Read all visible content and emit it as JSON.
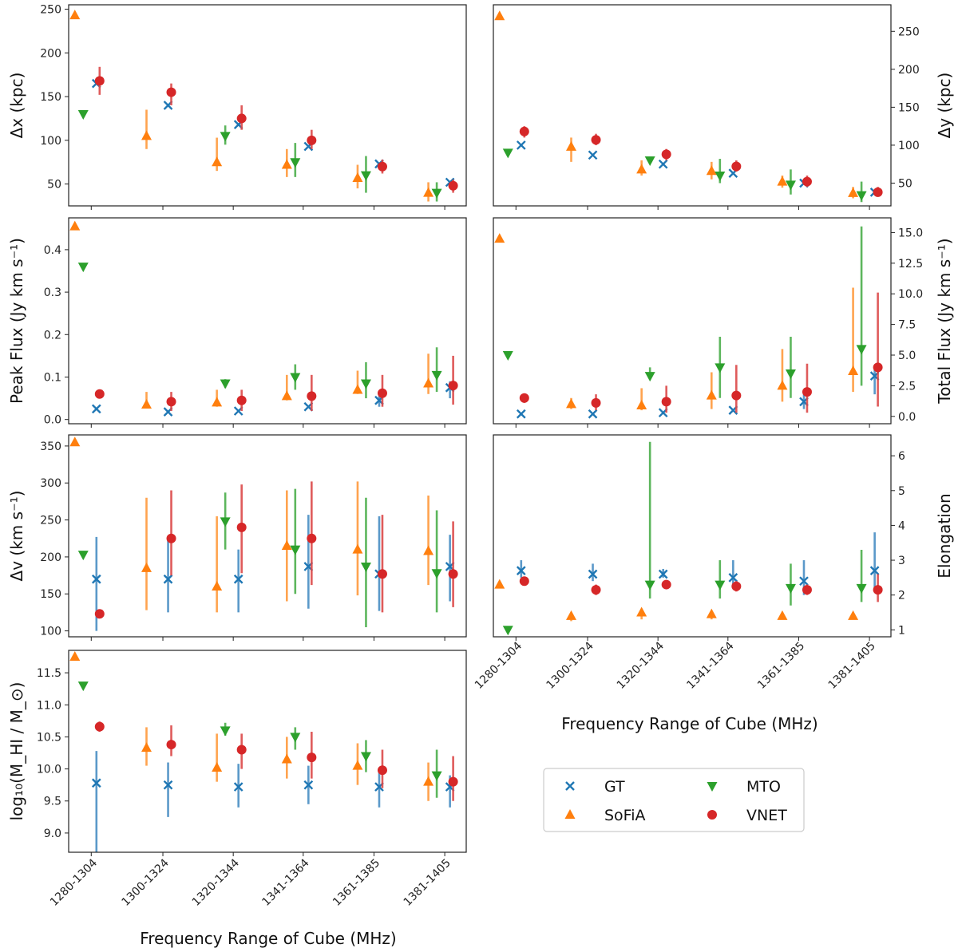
{
  "chart_data": {
    "type": "scatter",
    "categories": [
      "1280-1304",
      "1300-1324",
      "1320-1344",
      "1341-1364",
      "1361-1385",
      "1381-1405"
    ],
    "xlabel": "Frequency Range of Cube (MHz)",
    "legend": [
      {
        "key": "GT",
        "label": "GT",
        "color": "#1f77b4",
        "marker": "x"
      },
      {
        "key": "MTO",
        "label": "MTO",
        "color": "#2ca02c",
        "marker": "triangle-down"
      },
      {
        "key": "SoFiA",
        "label": "SoFiA",
        "color": "#ff7f0e",
        "marker": "triangle-up"
      },
      {
        "key": "VNET",
        "label": "VNET",
        "color": "#d62728",
        "marker": "circle"
      }
    ],
    "panels": [
      {
        "id": "dx",
        "ylabel": "Δx (kpc)",
        "ylim": [
          25,
          255
        ],
        "yticks": [
          50,
          100,
          150,
          200,
          250
        ],
        "yaxis": "left",
        "series": {
          "SoFiA": {
            "values": [
              243,
              105,
              75,
              72,
              57,
              40
            ],
            "low": [
              null,
              90,
              65,
              58,
              45,
              30
            ],
            "high": [
              null,
              135,
              103,
              90,
              72,
              52
            ]
          },
          "MTO": {
            "values": [
              130,
              null,
              105,
              75,
              60,
              40
            ],
            "low": [
              null,
              null,
              95,
              58,
              40,
              30
            ],
            "high": [
              null,
              null,
              117,
              97,
              82,
              52
            ]
          },
          "GT": {
            "values": [
              165,
              140,
              118,
              93,
              73,
              52
            ],
            "low": [
              null,
              null,
              null,
              null,
              null,
              null
            ],
            "high": [
              null,
              null,
              null,
              null,
              null,
              null
            ]
          },
          "VNET": {
            "values": [
              168,
              155,
              125,
              100,
              70,
              48
            ],
            "low": [
              152,
              140,
              112,
              90,
              62,
              40
            ],
            "high": [
              184,
              165,
              140,
              112,
              78,
              55
            ]
          }
        }
      },
      {
        "id": "dy",
        "ylabel": "Δy (kpc)",
        "ylim": [
          20,
          285
        ],
        "yticks": [
          50,
          100,
          150,
          200,
          250
        ],
        "yaxis": "right",
        "series": {
          "SoFiA": {
            "values": [
              270,
              98,
              68,
              66,
              52,
              37
            ],
            "low": [
              null,
              78,
              60,
              55,
              44,
              30
            ],
            "high": [
              null,
              110,
              80,
              78,
              60,
              45
            ]
          },
          "MTO": {
            "values": [
              90,
              null,
              80,
              60,
              48,
              34
            ],
            "low": [
              null,
              null,
              null,
              50,
              35,
              25
            ],
            "high": [
              null,
              null,
              null,
              82,
              68,
              52
            ]
          },
          "GT": {
            "values": [
              100,
              87,
              75,
              63,
              50,
              38
            ],
            "low": [
              null,
              null,
              null,
              null,
              null,
              null
            ],
            "high": [
              null,
              null,
              null,
              null,
              null,
              null
            ]
          },
          "VNET": {
            "values": [
              118,
              107,
              88,
              72,
              52,
              38
            ],
            "low": [
              110,
              100,
              80,
              65,
              45,
              32
            ],
            "high": [
              125,
              115,
              95,
              80,
              60,
              45
            ]
          }
        }
      },
      {
        "id": "peak",
        "ylabel": "Peak Flux (Jy km s⁻¹)",
        "ylim": [
          -0.01,
          0.475
        ],
        "yticks": [
          0.0,
          0.1,
          0.2,
          0.3,
          0.4
        ],
        "yaxis": "left",
        "series": {
          "SoFiA": {
            "values": [
              0.455,
              0.035,
              0.04,
              0.055,
              0.07,
              0.085
            ],
            "low": [
              null,
              0.03,
              0.03,
              0.045,
              0.06,
              0.06
            ],
            "high": [
              null,
              0.065,
              0.07,
              0.105,
              0.115,
              0.155
            ]
          },
          "MTO": {
            "values": [
              0.36,
              null,
              0.085,
              0.1,
              0.085,
              0.105
            ],
            "low": [
              null,
              null,
              0.075,
              0.07,
              0.05,
              0.065
            ],
            "high": [
              null,
              null,
              0.095,
              0.13,
              0.135,
              0.17
            ]
          },
          "GT": {
            "values": [
              0.025,
              0.018,
              0.02,
              0.03,
              0.045,
              0.075
            ],
            "low": [
              null,
              null,
              null,
              null,
              0.03,
              0.05
            ],
            "high": [
              null,
              null,
              null,
              null,
              0.055,
              0.09
            ]
          },
          "VNET": {
            "values": [
              0.06,
              0.042,
              0.045,
              0.055,
              0.062,
              0.08
            ],
            "low": [
              0.05,
              0.02,
              0.02,
              0.02,
              0.03,
              0.035
            ],
            "high": [
              0.07,
              0.065,
              0.07,
              0.105,
              0.105,
              0.15
            ]
          }
        }
      },
      {
        "id": "total",
        "ylabel": "Total Flux (Jy km s⁻¹)",
        "ylim": [
          -0.6,
          16.2
        ],
        "yticks": [
          0.0,
          2.5,
          5.0,
          7.5,
          10.0,
          12.5,
          15.0
        ],
        "yaxis": "right",
        "series": {
          "SoFiA": {
            "values": [
              14.5,
              1.0,
              0.9,
              1.7,
              2.5,
              3.7
            ],
            "low": [
              null,
              0.6,
              0.5,
              0.6,
              1.2,
              2.0
            ],
            "high": [
              null,
              1.5,
              2.3,
              3.6,
              5.5,
              10.5
            ]
          },
          "MTO": {
            "values": [
              5.0,
              null,
              3.3,
              4.0,
              3.5,
              5.5
            ],
            "low": [
              null,
              null,
              3.0,
              1.5,
              1.5,
              2.5
            ],
            "high": [
              null,
              null,
              4.0,
              6.5,
              6.5,
              15.5
            ]
          },
          "GT": {
            "values": [
              0.2,
              0.2,
              0.3,
              0.5,
              1.2,
              3.3
            ],
            "low": [
              null,
              null,
              null,
              null,
              0.6,
              1.8
            ],
            "high": [
              null,
              null,
              null,
              null,
              1.8,
              4.0
            ]
          },
          "VNET": {
            "values": [
              1.5,
              1.1,
              1.2,
              1.7,
              2.0,
              4.0
            ],
            "low": [
              1.1,
              0.5,
              0.3,
              0.3,
              0.3,
              0.8
            ],
            "high": [
              1.8,
              1.8,
              2.5,
              4.2,
              4.3,
              10.1
            ]
          }
        }
      },
      {
        "id": "dv",
        "ylabel": "Δv (km s⁻¹)",
        "ylim": [
          92,
          365
        ],
        "yticks": [
          100,
          150,
          200,
          250,
          300,
          350
        ],
        "yaxis": "left",
        "series": {
          "SoFiA": {
            "values": [
              355,
              185,
              160,
              215,
              210,
              208
            ],
            "low": [
              null,
              128,
              125,
              140,
              148,
              162
            ],
            "high": [
              null,
              280,
              255,
              290,
              302,
              283
            ]
          },
          "MTO": {
            "values": [
              203,
              null,
              248,
              210,
              187,
              178
            ],
            "low": [
              null,
              null,
              210,
              150,
              105,
              125
            ],
            "high": [
              null,
              null,
              287,
              292,
              280,
              263
            ]
          },
          "GT": {
            "values": [
              170,
              170,
              170,
              187,
              177,
              187
            ],
            "low": [
              100,
              125,
              125,
              130,
              127,
              140
            ],
            "high": [
              227,
              227,
              210,
              257,
              255,
              230
            ]
          },
          "VNET": {
            "values": [
              123,
              225,
              240,
              225,
              177,
              177
            ],
            "low": [
              118,
              175,
              178,
              162,
              125,
              132
            ],
            "high": [
              128,
              290,
              298,
              302,
              257,
              248
            ]
          }
        }
      },
      {
        "id": "elong",
        "ylabel": "Elongation",
        "ylim": [
          0.8,
          6.6
        ],
        "yticks": [
          1,
          2,
          3,
          4,
          5,
          6
        ],
        "yaxis": "right",
        "series": {
          "SoFiA": {
            "values": [
              2.3,
              1.4,
              1.5,
              1.45,
              1.4,
              1.4
            ],
            "low": [
              null,
              1.25,
              1.3,
              1.3,
              1.3,
              1.3
            ],
            "high": [
              null,
              1.5,
              1.6,
              1.55,
              1.5,
              1.5
            ]
          },
          "MTO": {
            "values": [
              1.0,
              null,
              2.3,
              2.3,
              2.2,
              2.2
            ],
            "low": [
              null,
              null,
              1.9,
              1.9,
              1.7,
              1.8
            ],
            "high": [
              null,
              null,
              6.4,
              3.0,
              2.9,
              3.3
            ]
          },
          "GT": {
            "values": [
              2.7,
              2.6,
              2.6,
              2.5,
              2.4,
              2.7
            ],
            "low": [
              2.5,
              2.4,
              2.5,
              2.3,
              2.0,
              2.2
            ],
            "high": [
              3.0,
              2.9,
              2.75,
              3.0,
              3.0,
              3.8
            ]
          },
          "VNET": {
            "values": [
              2.4,
              2.15,
              2.3,
              2.25,
              2.15,
              2.15
            ],
            "low": [
              2.3,
              2.0,
              2.2,
              2.1,
              2.0,
              1.8
            ],
            "high": [
              2.5,
              2.3,
              2.4,
              2.4,
              2.3,
              2.6
            ]
          }
        }
      },
      {
        "id": "mass",
        "ylabel": "log₁₀(M_HI / M_⊙)",
        "ylim": [
          8.7,
          11.85
        ],
        "yticks": [
          9.0,
          9.5,
          10.0,
          10.5,
          11.0,
          11.5
        ],
        "yaxis": "left",
        "series": {
          "SoFiA": {
            "values": [
              11.75,
              10.33,
              10.02,
              10.15,
              10.05,
              9.8
            ],
            "low": [
              null,
              10.05,
              9.8,
              9.85,
              9.75,
              9.5
            ],
            "high": [
              null,
              10.65,
              10.55,
              10.5,
              10.4,
              10.1
            ]
          },
          "MTO": {
            "values": [
              11.3,
              null,
              10.6,
              10.5,
              10.2,
              9.9
            ],
            "low": [
              null,
              null,
              10.52,
              10.3,
              9.95,
              9.55
            ],
            "high": [
              null,
              null,
              10.72,
              10.65,
              10.45,
              10.3
            ]
          },
          "GT": {
            "values": [
              9.78,
              9.75,
              9.72,
              9.75,
              9.72,
              9.72
            ],
            "low": [
              8.7,
              9.25,
              9.4,
              9.45,
              9.4,
              9.4
            ],
            "high": [
              10.28,
              10.1,
              10.08,
              10.05,
              10.0,
              9.9
            ]
          },
          "VNET": {
            "values": [
              10.66,
              10.38,
              10.3,
              10.18,
              9.98,
              9.8
            ],
            "low": [
              10.58,
              10.2,
              10.0,
              9.85,
              9.7,
              9.5
            ],
            "high": [
              10.74,
              10.68,
              10.55,
              10.58,
              10.3,
              10.2
            ]
          }
        }
      }
    ]
  }
}
